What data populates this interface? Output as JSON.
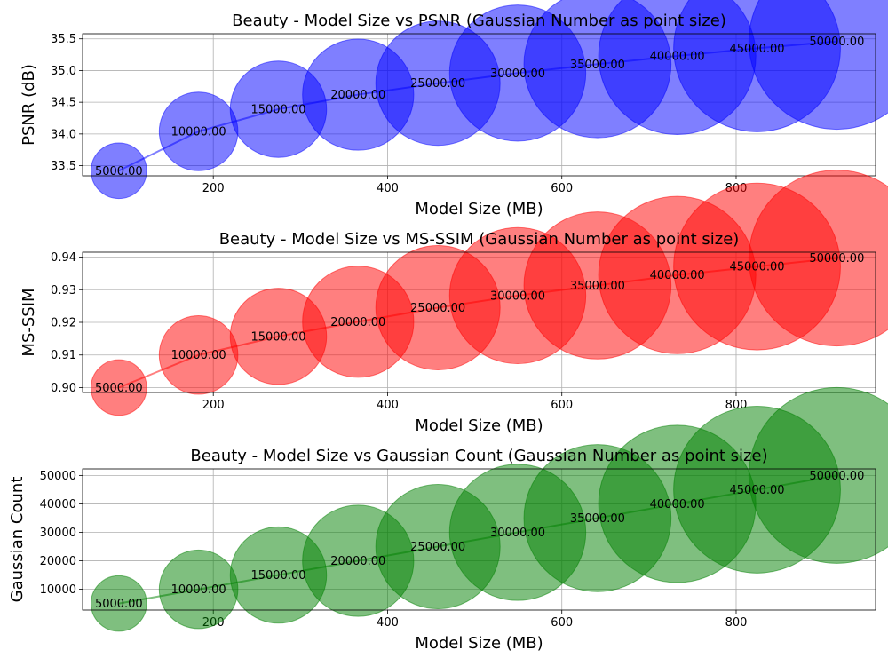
{
  "chart_data": [
    {
      "type": "scatter",
      "title": "Beauty - Model Size vs PSNR (Gaussian Number as point size)",
      "xlabel": "Model Size (MB)",
      "ylabel": "PSNR (dB)",
      "color": "#0000ff",
      "xlim": [
        50,
        960
      ],
      "ylim": [
        33.34,
        35.58
      ],
      "xticks": [
        200,
        400,
        600,
        800
      ],
      "yticks": [
        33.5,
        34.0,
        34.5,
        35.0,
        35.5
      ],
      "grid": true,
      "x": [
        91.6,
        183.1,
        274.7,
        366.2,
        457.8,
        549.3,
        640.9,
        732.4,
        824.0,
        915.5
      ],
      "y": [
        33.42,
        34.04,
        34.39,
        34.62,
        34.8,
        34.96,
        35.1,
        35.23,
        35.35,
        35.46
      ],
      "sizes": [
        5000,
        10000,
        15000,
        20000,
        25000,
        30000,
        35000,
        40000,
        45000,
        50000
      ],
      "labels": [
        "5000.00",
        "10000.00",
        "15000.00",
        "20000.00",
        "25000.00",
        "30000.00",
        "35000.00",
        "40000.00",
        "45000.00",
        "50000.00"
      ]
    },
    {
      "type": "scatter",
      "title": "Beauty - Model Size vs MS-SSIM (Gaussian Number as point size)",
      "xlabel": "Model Size (MB)",
      "ylabel": "MS-SSIM",
      "color": "#ff0000",
      "xlim": [
        50,
        960
      ],
      "ylim": [
        0.8985,
        0.9415
      ],
      "xticks": [
        200,
        400,
        600,
        800
      ],
      "yticks": [
        0.9,
        0.91,
        0.92,
        0.93,
        0.94
      ],
      "ytick_labels": [
        "0.90",
        "0.91",
        "0.92",
        "0.93",
        "0.94"
      ],
      "grid": true,
      "x": [
        91.6,
        183.1,
        274.7,
        366.2,
        457.8,
        549.3,
        640.9,
        732.4,
        824.0,
        915.5
      ],
      "y": [
        0.9,
        0.91,
        0.9157,
        0.9202,
        0.9245,
        0.9282,
        0.9313,
        0.9345,
        0.9371,
        0.9397
      ],
      "sizes": [
        5000,
        10000,
        15000,
        20000,
        25000,
        30000,
        35000,
        40000,
        45000,
        50000
      ],
      "labels": [
        "5000.00",
        "10000.00",
        "15000.00",
        "20000.00",
        "25000.00",
        "30000.00",
        "35000.00",
        "40000.00",
        "45000.00",
        "50000.00"
      ]
    },
    {
      "type": "scatter",
      "title": "Beauty - Model Size vs Gaussian Count (Gaussian Number as point size)",
      "xlabel": "Model Size (MB)",
      "ylabel": "Gaussian Count",
      "color": "#008000",
      "xlim": [
        50,
        960
      ],
      "ylim": [
        2700,
        52300
      ],
      "xticks": [
        200,
        400,
        600,
        800
      ],
      "yticks": [
        10000,
        20000,
        30000,
        40000,
        50000
      ],
      "grid": true,
      "x": [
        91.6,
        183.1,
        274.7,
        366.2,
        457.8,
        549.3,
        640.9,
        732.4,
        824.0,
        915.5
      ],
      "y": [
        5000,
        10000,
        15000,
        20000,
        25000,
        30000,
        35000,
        40000,
        45000,
        50000
      ],
      "sizes": [
        5000,
        10000,
        15000,
        20000,
        25000,
        30000,
        35000,
        40000,
        45000,
        50000
      ],
      "labels": [
        "5000.00",
        "10000.00",
        "15000.00",
        "20000.00",
        "25000.00",
        "30000.00",
        "35000.00",
        "40000.00",
        "45000.00",
        "50000.00"
      ]
    }
  ]
}
